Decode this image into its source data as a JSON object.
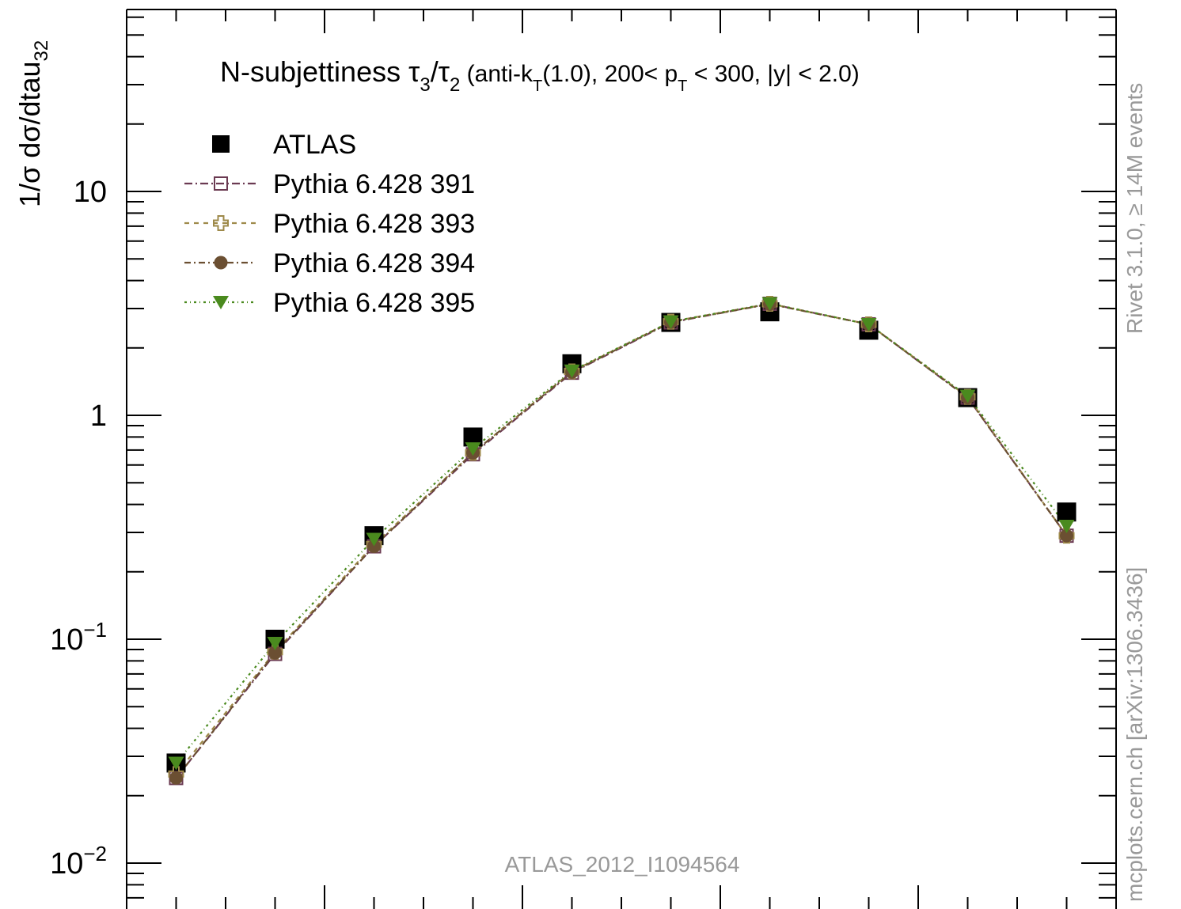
{
  "chart_data": {
    "type": "scatter",
    "title": "N-subjettiness τ3/τ2 (anti-kT(1.0), 200< pT < 300, |y| < 2.0)",
    "title_parts": {
      "prefix": "N-subjettiness ",
      "tau": "τ",
      "sub3": "3",
      "slash": "/",
      "sub2": "2",
      "mid1": " (anti-k",
      "subT": "T",
      "mid2": "(1.0), 200< p",
      "mid3": " < 300, |y| < 2.0)"
    },
    "ylabel": "1/σ dσ/dtau32",
    "ylabel_parts": {
      "main": "1/σ dσ/dtau",
      "sub": "32"
    },
    "y_scale": "log",
    "ylim": [
      0.006,
      70
    ],
    "y_ticks": [
      {
        "value": 10,
        "label": "10"
      },
      {
        "value": 1,
        "label": "1"
      },
      {
        "value": 0.1,
        "label": "10",
        "exp": "−1"
      },
      {
        "value": 0.01,
        "label": "10",
        "exp": "−2"
      }
    ],
    "xlim": [
      0,
      1
    ],
    "x": [
      0.05,
      0.15,
      0.25,
      0.35,
      0.45,
      0.55,
      0.65,
      0.75,
      0.85,
      0.95
    ],
    "series": [
      {
        "name": "ATLAS",
        "marker": "square-filled",
        "color": "#000000",
        "values": [
          0.028,
          0.1,
          0.29,
          0.8,
          1.7,
          2.6,
          2.9,
          2.4,
          1.2,
          0.37
        ]
      },
      {
        "name": "Pythia 6.428 391",
        "marker": "square-open",
        "color": "#6b3a52",
        "dash": "10,4,2,4",
        "values": [
          0.024,
          0.086,
          0.26,
          0.67,
          1.55,
          2.6,
          3.15,
          2.55,
          1.2,
          0.29
        ]
      },
      {
        "name": "Pythia 6.428 393",
        "marker": "cross-open",
        "color": "#9e8a4a",
        "dash": "6,6",
        "values": [
          0.025,
          0.088,
          0.265,
          0.68,
          1.57,
          2.62,
          3.15,
          2.55,
          1.21,
          0.29
        ]
      },
      {
        "name": "Pythia 6.428 394",
        "marker": "circle-filled",
        "color": "#6b4f32",
        "dash": "8,4,2,4",
        "values": [
          0.024,
          0.087,
          0.26,
          0.68,
          1.56,
          2.61,
          3.14,
          2.55,
          1.2,
          0.29
        ]
      },
      {
        "name": "Pythia 6.428 395",
        "marker": "triangle-down-filled",
        "color": "#4a8a1e",
        "dash": "3,4,1,4",
        "values": [
          0.028,
          0.096,
          0.28,
          0.71,
          1.58,
          2.62,
          3.16,
          2.55,
          1.22,
          0.32
        ]
      }
    ],
    "grid": false,
    "legend_position": "top-left",
    "annotation": "ATLAS_2012_I1094564",
    "right_labels": {
      "rivet": "Rivet 3.1.0, ≥ 14M events",
      "mcplots": "mcplots.cern.ch [arXiv:1306.3436]"
    }
  }
}
